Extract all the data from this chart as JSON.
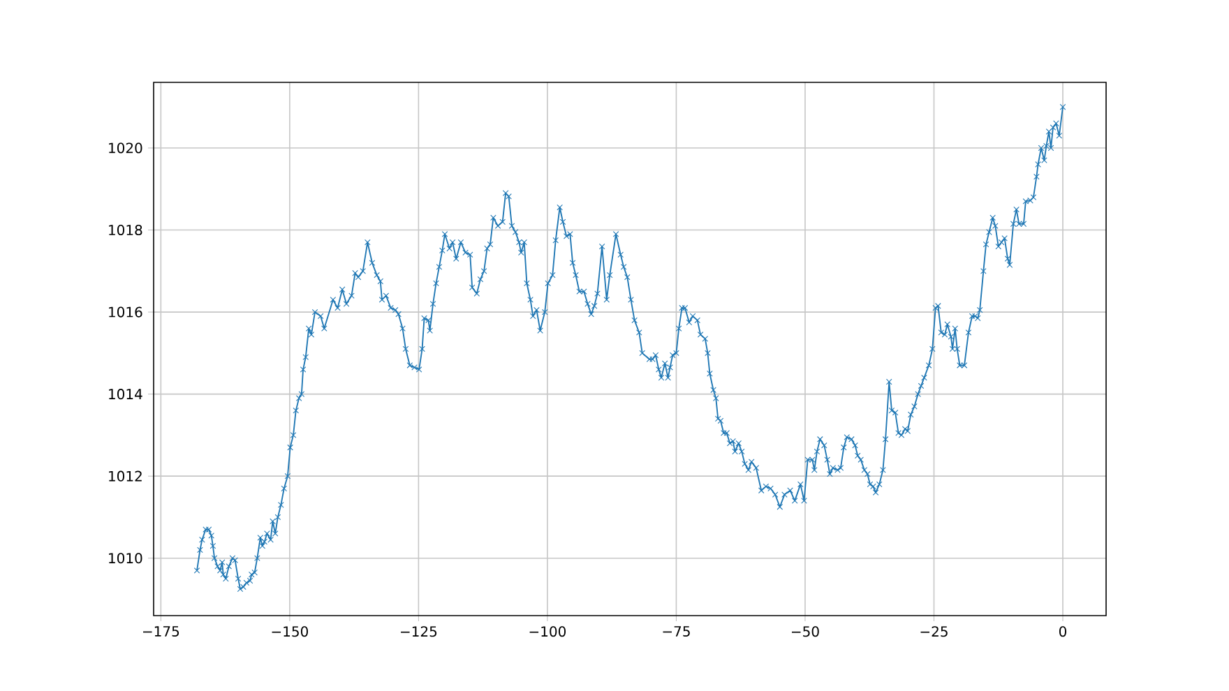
{
  "chart_data": {
    "type": "line",
    "color": "#1f77b4",
    "marker": "cross",
    "grid": true,
    "xlim": [
      -176.4,
      8.4
    ],
    "ylim": [
      1008.6,
      1021.6
    ],
    "xticks": [
      {
        "value": -175,
        "label": "−175"
      },
      {
        "value": -150,
        "label": "−150"
      },
      {
        "value": -125,
        "label": "−125"
      },
      {
        "value": -100,
        "label": "−100"
      },
      {
        "value": -75,
        "label": "−75"
      },
      {
        "value": -50,
        "label": "−50"
      },
      {
        "value": -25,
        "label": "−25"
      },
      0
    ],
    "yticks": [
      1010,
      1012,
      1014,
      1016,
      1018,
      1020
    ],
    "x": [
      -168.0,
      -167.4,
      -167.0,
      -166.3,
      -165.7,
      -165.2,
      -164.9,
      -164.6,
      -164.0,
      -163.5,
      -163.1,
      -162.9,
      -162.4,
      -161.8,
      -161.1,
      -160.6,
      -160.0,
      -159.6,
      -159.0,
      -158.4,
      -157.7,
      -157.4,
      -156.8,
      -156.3,
      -155.7,
      -155.3,
      -154.9,
      -154.4,
      -153.7,
      -153.3,
      -152.8,
      -152.3,
      -151.7,
      -151.1,
      -150.4,
      -149.9,
      -149.3,
      -148.8,
      -148.2,
      -147.7,
      -147.4,
      -146.9,
      -146.3,
      -145.8,
      -145.1,
      -144.0,
      -143.3,
      -141.6,
      -140.7,
      -139.8,
      -139.0,
      -138.0,
      -137.3,
      -136.7,
      -135.8,
      -134.9,
      -134.0,
      -133.1,
      -132.4,
      -132.1,
      -131.3,
      -130.4,
      -129.5,
      -128.9,
      -128.1,
      -127.5,
      -126.7,
      -125.8,
      -124.9,
      -124.3,
      -123.9,
      -123.1,
      -122.8,
      -122.2,
      -121.6,
      -121.0,
      -120.4,
      -119.9,
      -119.0,
      -118.4,
      -117.7,
      -116.8,
      -115.9,
      -115.0,
      -114.6,
      -113.7,
      -113.0,
      -112.3,
      -111.7,
      -111.1,
      -110.5,
      -109.6,
      -108.7,
      -108.1,
      -107.5,
      -106.9,
      -106.2,
      -105.5,
      -105.1,
      -104.5,
      -104.0,
      -103.3,
      -102.8,
      -102.1,
      -101.4,
      -100.5,
      -99.9,
      -99.0,
      -98.4,
      -97.6,
      -97.0,
      -96.3,
      -95.6,
      -95.1,
      -94.5,
      -93.8,
      -92.9,
      -92.2,
      -91.5,
      -90.9,
      -90.3,
      -89.4,
      -88.5,
      -87.9,
      -86.7,
      -85.8,
      -85.2,
      -84.5,
      -83.8,
      -83.1,
      -82.2,
      -81.6,
      -80.2,
      -79.6,
      -79.0,
      -78.4,
      -77.9,
      -77.2,
      -76.6,
      -76.2,
      -75.7,
      -75.0,
      -74.5,
      -73.9,
      -73.3,
      -72.5,
      -71.8,
      -70.9,
      -70.3,
      -69.4,
      -68.9,
      -68.5,
      -67.8,
      -67.3,
      -66.9,
      -66.4,
      -65.8,
      -65.2,
      -64.6,
      -64.0,
      -63.6,
      -62.9,
      -62.3,
      -61.7,
      -61.0,
      -60.4,
      -59.5,
      -58.5,
      -57.6,
      -56.7,
      -55.8,
      -54.9,
      -54.0,
      -52.9,
      -52.0,
      -50.9,
      -50.2,
      -49.5,
      -48.6,
      -48.2,
      -47.7,
      -47.1,
      -46.3,
      -45.7,
      -45.2,
      -44.6,
      -43.7,
      -43.1,
      -42.5,
      -41.9,
      -41.0,
      -40.3,
      -39.8,
      -39.2,
      -38.5,
      -37.9,
      -37.4,
      -36.8,
      -36.3,
      -35.6,
      -34.9,
      -34.4,
      -33.7,
      -33.2,
      -32.5,
      -31.9,
      -31.3,
      -30.6,
      -30.1,
      -29.5,
      -28.8,
      -28.1,
      -27.5,
      -26.9,
      -26.0,
      -25.3,
      -24.7,
      -24.2,
      -23.6,
      -22.9,
      -22.4,
      -21.7,
      -21.4,
      -20.9,
      -20.5,
      -20.0,
      -19.1,
      -18.3,
      -17.6,
      -17.0,
      -16.5,
      -16.1,
      -15.4,
      -14.9,
      -14.3,
      -13.6,
      -13.1,
      -12.5,
      -11.9,
      -11.3,
      -10.7,
      -10.3,
      -9.6,
      -9.0,
      -8.5,
      -7.6,
      -7.2,
      -6.3,
      -5.7,
      -5.1,
      -4.8,
      -4.2,
      -3.6,
      -3.2,
      -2.7,
      -2.3,
      -1.9,
      -1.3,
      -0.7,
      0.0
    ],
    "values": [
      1009.7,
      1010.2,
      1010.45,
      1010.7,
      1010.7,
      1010.55,
      1010.3,
      1010.0,
      1009.8,
      1009.7,
      1009.9,
      1009.6,
      1009.5,
      1009.8,
      1010.0,
      1009.95,
      1009.5,
      1009.25,
      1009.3,
      1009.4,
      1009.45,
      1009.6,
      1009.65,
      1010.0,
      1010.5,
      1010.3,
      1010.4,
      1010.6,
      1010.45,
      1010.9,
      1010.6,
      1011.0,
      1011.3,
      1011.7,
      1012.0,
      1012.7,
      1013.0,
      1013.6,
      1013.9,
      1014.0,
      1014.6,
      1014.9,
      1015.6,
      1015.45,
      1016.0,
      1015.9,
      1015.6,
      1016.3,
      1016.1,
      1016.55,
      1016.2,
      1016.4,
      1016.95,
      1016.85,
      1017.0,
      1017.7,
      1017.2,
      1016.9,
      1016.75,
      1016.3,
      1016.4,
      1016.1,
      1016.05,
      1015.95,
      1015.6,
      1015.1,
      1014.7,
      1014.65,
      1014.6,
      1015.1,
      1015.85,
      1015.8,
      1015.55,
      1016.2,
      1016.7,
      1017.1,
      1017.5,
      1017.9,
      1017.55,
      1017.7,
      1017.3,
      1017.7,
      1017.45,
      1017.4,
      1016.6,
      1016.45,
      1016.8,
      1017.0,
      1017.55,
      1017.65,
      1018.3,
      1018.1,
      1018.2,
      1018.9,
      1018.82,
      1018.1,
      1017.95,
      1017.7,
      1017.45,
      1017.7,
      1016.7,
      1016.3,
      1015.9,
      1016.05,
      1015.55,
      1016.0,
      1016.7,
      1016.9,
      1017.75,
      1018.55,
      1018.2,
      1017.85,
      1017.9,
      1017.2,
      1016.9,
      1016.5,
      1016.5,
      1016.2,
      1015.95,
      1016.15,
      1016.45,
      1017.6,
      1016.3,
      1016.9,
      1017.9,
      1017.4,
      1017.1,
      1016.85,
      1016.3,
      1015.8,
      1015.5,
      1015.0,
      1014.85,
      1014.85,
      1014.95,
      1014.6,
      1014.4,
      1014.75,
      1014.4,
      1014.65,
      1014.95,
      1015.0,
      1015.6,
      1016.1,
      1016.1,
      1015.75,
      1015.9,
      1015.8,
      1015.45,
      1015.35,
      1015.0,
      1014.5,
      1014.1,
      1013.9,
      1013.4,
      1013.35,
      1013.05,
      1013.05,
      1012.8,
      1012.85,
      1012.6,
      1012.8,
      1012.6,
      1012.3,
      1012.15,
      1012.35,
      1012.2,
      1011.65,
      1011.75,
      1011.7,
      1011.55,
      1011.25,
      1011.55,
      1011.65,
      1011.4,
      1011.8,
      1011.4,
      1012.4,
      1012.4,
      1012.15,
      1012.6,
      1012.9,
      1012.75,
      1012.4,
      1012.05,
      1012.2,
      1012.15,
      1012.2,
      1012.7,
      1012.95,
      1012.9,
      1012.75,
      1012.5,
      1012.4,
      1012.15,
      1012.05,
      1011.8,
      1011.75,
      1011.6,
      1011.8,
      1012.15,
      1012.9,
      1014.3,
      1013.6,
      1013.55,
      1013.05,
      1013.0,
      1013.15,
      1013.1,
      1013.5,
      1013.7,
      1014.0,
      1014.2,
      1014.4,
      1014.7,
      1015.1,
      1016.1,
      1016.15,
      1015.5,
      1015.45,
      1015.7,
      1015.4,
      1015.1,
      1015.6,
      1015.1,
      1014.7,
      1014.7,
      1015.5,
      1015.9,
      1015.9,
      1015.85,
      1016.05,
      1017.0,
      1017.65,
      1017.95,
      1018.3,
      1018.1,
      1017.6,
      1017.7,
      1017.8,
      1017.3,
      1017.15,
      1018.15,
      1018.5,
      1018.15,
      1018.15,
      1018.7,
      1018.72,
      1018.8,
      1019.3,
      1019.6,
      1020.0,
      1019.7,
      1020.05,
      1020.4,
      1020.0,
      1020.5,
      1020.6,
      1020.3,
      1021.0
    ]
  }
}
